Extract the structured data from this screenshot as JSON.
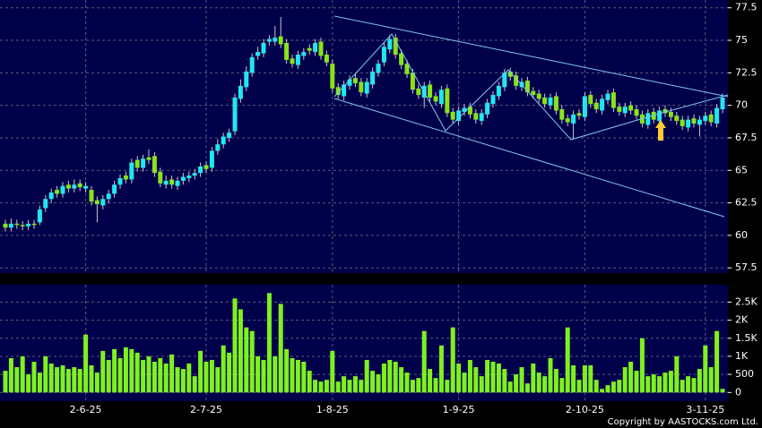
{
  "chart_data": {
    "type": "candlestick",
    "categories": [
      null,
      null,
      null,
      null,
      null,
      null,
      null,
      null,
      null,
      null,
      null,
      null,
      null,
      null,
      "2-6-25",
      null,
      null,
      null,
      null,
      null,
      null,
      null,
      null,
      null,
      null,
      null,
      null,
      null,
      null,
      null,
      null,
      null,
      null,
      null,
      null,
      "2-7-25",
      null,
      null,
      null,
      null,
      null,
      null,
      null,
      null,
      null,
      null,
      null,
      null,
      null,
      null,
      null,
      null,
      null,
      null,
      null,
      null,
      null,
      "1-8-25",
      null,
      null,
      null,
      null,
      null,
      null,
      null,
      null,
      null,
      null,
      null,
      null,
      null,
      null,
      null,
      null,
      null,
      null,
      null,
      null,
      null,
      "1-9-25",
      null,
      null,
      null,
      null,
      null,
      null,
      null,
      null,
      null,
      null,
      null,
      null,
      null,
      null,
      null,
      null,
      null,
      null,
      null,
      null,
      null,
      "2-10-25",
      null,
      null,
      null,
      null,
      null,
      null,
      null,
      null,
      null,
      null,
      null,
      null,
      null,
      null,
      null,
      null,
      null,
      null,
      null,
      null,
      "3-11-25",
      null,
      null,
      null
    ],
    "open": [
      60.9,
      60.6,
      60.9,
      60.8,
      60.7,
      60.9,
      61.0,
      62.1,
      62.8,
      63.5,
      63.2,
      63.9,
      63.6,
      64.0,
      63.6,
      63.5,
      62.7,
      62.3,
      62.8,
      63.2,
      63.9,
      64.6,
      64.3,
      65.8,
      65.2,
      66.0,
      66.1,
      64.9,
      63.9,
      64.3,
      63.8,
      64.2,
      64.4,
      64.6,
      64.8,
      65.4,
      65.2,
      66.5,
      67.0,
      67.5,
      68.0,
      70.5,
      71.4,
      72.5,
      73.8,
      74.0,
      74.9,
      74.9,
      75.3,
      74.8,
      73.6,
      73.1,
      73.8,
      74.4,
      74.1,
      74.9,
      73.9,
      73.2,
      71.4,
      70.7,
      71.5,
      72.1,
      71.8,
      70.9,
      71.6,
      72.5,
      73.3,
      74.3,
      75.2,
      74.0,
      73.2,
      72.5,
      71.3,
      70.6,
      71.6,
      70.7,
      70.1,
      71.3,
      69.5,
      68.8,
      69.5,
      69.9,
      69.4,
      68.8,
      69.3,
      70.1,
      70.7,
      71.4,
      72.6,
      72.3,
      71.4,
      71.9,
      71.1,
      70.9,
      70.6,
      70.0,
      70.7,
      69.7,
      69.0,
      68.6,
      69.4,
      69.1,
      70.8,
      70.2,
      69.6,
      70.4,
      71.0,
      69.9,
      69.4,
      70.0,
      69.7,
      69.3,
      68.5,
      69.5,
      68.8,
      69.7,
      69.5,
      69.2,
      68.9,
      68.3,
      69.0,
      68.5,
      68.8,
      69.3,
      68.6,
      69.7
    ],
    "high": [
      61.2,
      61.3,
      61.2,
      61.1,
      61.2,
      61.2,
      62.3,
      63.1,
      63.6,
      63.8,
      64.1,
      64.2,
      64.3,
      64.3,
      64.1,
      63.8,
      63.0,
      63.1,
      63.5,
      64.2,
      64.7,
      64.9,
      65.9,
      66.1,
      66.2,
      66.6,
      66.4,
      65.2,
      64.6,
      64.6,
      64.5,
      64.8,
      64.9,
      65.1,
      65.6,
      65.7,
      66.8,
      67.4,
      67.9,
      68.2,
      70.9,
      72.0,
      73.0,
      74.0,
      74.5,
      75.1,
      75.4,
      76.1,
      76.8,
      75.1,
      73.9,
      74.2,
      74.4,
      74.7,
      75.1,
      75.2,
      74.2,
      73.5,
      71.7,
      71.9,
      72.3,
      72.4,
      72.1,
      72.1,
      72.9,
      73.5,
      74.8,
      75.4,
      75.5,
      74.3,
      73.5,
      72.8,
      71.6,
      71.8,
      71.9,
      71.0,
      71.5,
      71.6,
      69.8,
      69.9,
      70.1,
      70.2,
      69.7,
      69.7,
      70.5,
      71.1,
      71.8,
      72.8,
      72.9,
      72.6,
      72.1,
      72.2,
      71.4,
      71.2,
      70.9,
      70.9,
      71.0,
      70.0,
      69.3,
      69.6,
      69.7,
      71.0,
      71.1,
      70.5,
      70.8,
      71.2,
      71.3,
      70.2,
      70.2,
      70.3,
      70.0,
      69.6,
      69.7,
      69.8,
      69.9,
      70.0,
      69.8,
      69.5,
      69.2,
      69.2,
      69.3,
      69.2,
      69.5,
      69.6,
      70.1,
      70.9
    ],
    "low": [
      60.3,
      60.3,
      60.5,
      60.4,
      60.4,
      60.5,
      60.8,
      61.8,
      62.5,
      62.9,
      62.9,
      63.3,
      63.3,
      63.4,
      63.3,
      62.3,
      61.0,
      62.0,
      62.5,
      62.9,
      63.6,
      64.0,
      64.0,
      64.9,
      64.9,
      65.5,
      64.5,
      63.7,
      63.6,
      63.6,
      63.5,
      63.9,
      64.1,
      64.3,
      64.5,
      64.8,
      64.9,
      66.2,
      66.7,
      67.2,
      67.7,
      70.2,
      71.1,
      72.2,
      73.5,
      73.7,
      74.6,
      74.6,
      74.4,
      73.2,
      72.9,
      72.8,
      73.5,
      73.9,
      73.8,
      73.5,
      73.0,
      71.0,
      70.5,
      70.4,
      71.2,
      71.4,
      70.7,
      70.6,
      71.3,
      72.2,
      73.0,
      74.0,
      73.6,
      72.8,
      72.1,
      70.9,
      70.5,
      69.8,
      70.3,
      70.0,
      69.8,
      69.1,
      68.6,
      68.5,
      69.2,
      69.0,
      68.6,
      68.5,
      69.0,
      69.8,
      70.4,
      71.1,
      71.9,
      71.2,
      71.1,
      70.7,
      70.5,
      70.2,
      69.8,
      69.7,
      69.3,
      68.6,
      68.4,
      67.4,
      68.9,
      68.8,
      69.8,
      69.4,
      69.3,
      70.1,
      69.5,
      69.2,
      69.1,
      69.3,
      68.9,
      68.3,
      68.2,
      68.6,
      68.5,
      69.1,
      68.8,
      68.5,
      68.1,
      68.0,
      68.3,
      67.6,
      68.5,
      68.4,
      68.3,
      69.4
    ],
    "close": [
      60.6,
      60.9,
      60.8,
      60.7,
      60.9,
      60.8,
      62.0,
      62.8,
      63.3,
      63.2,
      63.8,
      63.6,
      63.9,
      63.7,
      63.8,
      62.6,
      62.4,
      62.8,
      63.2,
      63.9,
      64.4,
      64.3,
      65.6,
      65.2,
      65.9,
      65.8,
      64.8,
      64.0,
      64.2,
      63.9,
      64.2,
      64.5,
      64.6,
      64.8,
      65.3,
      65.1,
      66.5,
      67.0,
      67.6,
      67.9,
      70.6,
      71.5,
      72.6,
      73.7,
      74.1,
      74.8,
      75.1,
      75.2,
      74.7,
      73.5,
      73.2,
      73.9,
      74.1,
      74.2,
      74.8,
      73.8,
      73.3,
      71.3,
      70.8,
      71.6,
      72.0,
      71.7,
      71.0,
      71.8,
      72.6,
      73.2,
      74.5,
      75.1,
      73.9,
      73.1,
      72.4,
      71.2,
      70.8,
      71.5,
      70.6,
      70.3,
      71.2,
      69.4,
      68.9,
      69.6,
      69.8,
      69.3,
      68.9,
      69.4,
      70.2,
      70.8,
      71.5,
      72.5,
      72.2,
      71.5,
      71.8,
      71.0,
      70.8,
      70.5,
      70.1,
      70.6,
      69.6,
      68.9,
      68.7,
      69.3,
      69.2,
      70.7,
      70.1,
      69.7,
      70.5,
      70.9,
      69.8,
      69.5,
      69.9,
      69.6,
      69.2,
      68.6,
      69.4,
      68.9,
      69.6,
      69.4,
      69.1,
      68.8,
      68.4,
      68.9,
      68.6,
      68.9,
      69.2,
      68.7,
      69.8,
      70.6
    ],
    "up_color": "#22e6f2",
    "down_color": "#8ae21e",
    "ylim": [
      57.1,
      78.1
    ],
    "yticks": [
      57.5,
      60,
      62.5,
      65,
      67.5,
      70,
      72.5,
      75,
      77.5
    ],
    "grid": true,
    "volume": {
      "values": [
        600,
        950,
        700,
        1000,
        500,
        850,
        550,
        1000,
        800,
        700,
        750,
        650,
        700,
        650,
        1600,
        750,
        550,
        1150,
        900,
        1200,
        950,
        1250,
        1200,
        1100,
        900,
        1000,
        850,
        950,
        800,
        1050,
        700,
        650,
        800,
        450,
        1150,
        850,
        900,
        700,
        1300,
        1100,
        2600,
        2300,
        1800,
        1700,
        1000,
        900,
        2750,
        1000,
        2450,
        1200,
        950,
        900,
        850,
        600,
        350,
        300,
        350,
        1150,
        300,
        450,
        350,
        450,
        350,
        900,
        600,
        500,
        800,
        900,
        850,
        700,
        550,
        350,
        400,
        1700,
        650,
        400,
        1300,
        350,
        1800,
        800,
        550,
        900,
        700,
        450,
        900,
        850,
        800,
        650,
        300,
        500,
        700,
        250,
        800,
        550,
        450,
        950,
        650,
        400,
        1800,
        750,
        350,
        750,
        750,
        350,
        100,
        200,
        300,
        350,
        700,
        850,
        600,
        1500,
        450,
        500,
        450,
        550,
        600,
        1000,
        350,
        450,
        400,
        650,
        1300,
        700,
        1700,
        100
      ],
      "color": "#80f020",
      "ylim": [
        -240,
        2980
      ],
      "yticks": [
        0,
        500,
        {
          "value": 1000,
          "label": "1K"
        },
        {
          "value": 1500,
          "label": "1.5K"
        },
        {
          "value": 2000,
          "label": "2K"
        },
        {
          "value": 2500,
          "label": "2.5K"
        }
      ]
    },
    "copyright": "Copyright by AASTOCKS.com Ltd."
  }
}
